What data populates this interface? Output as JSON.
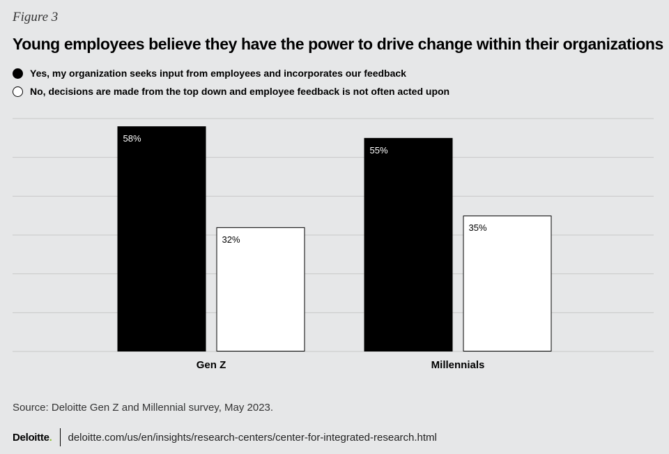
{
  "figure_label": "Figure 3",
  "footer": {
    "source": "Source: Deloitte Gen Z and Millennial survey, May 2023.",
    "brand": "Deloitte",
    "brand_dot": ".",
    "url": "deloitte.com/us/en/insights/research-centers/center-for-integrated-research.html"
  },
  "colors": {
    "background": "#e6e7e8",
    "series_yes": "#000000",
    "series_no": "#ffffff",
    "gridline": "#c8c8c8",
    "brand_accent": "#86bc25"
  },
  "chart_data": {
    "type": "bar",
    "title": "Young employees believe they have the power to drive change within their organizations",
    "categories": [
      "Gen Z",
      "Millennials"
    ],
    "series": [
      {
        "name": "Yes, my organization seeks input from employees and incorporates our feedback",
        "values": [
          58,
          55
        ],
        "labels": [
          "58%",
          "55%"
        ],
        "color": "#000000"
      },
      {
        "name": "No, decisions are made from the top down and employee feedback is not often acted upon",
        "values": [
          32,
          35
        ],
        "labels": [
          "32%",
          "35%"
        ],
        "color": "#ffffff"
      }
    ],
    "ylim": [
      0,
      60
    ],
    "grid": true,
    "legend_position": "top-left"
  }
}
